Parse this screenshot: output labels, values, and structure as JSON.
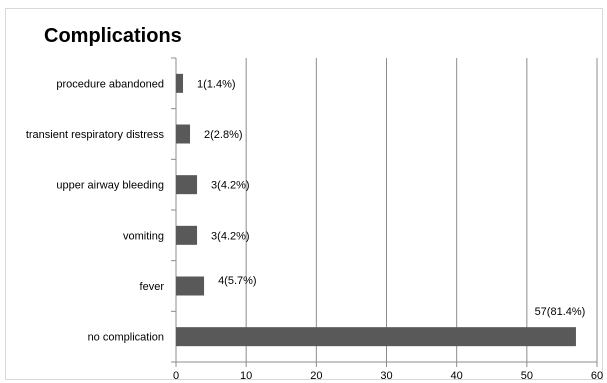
{
  "chart_data": {
    "type": "bar",
    "orientation": "horizontal",
    "title": "Complications",
    "categories": [
      "procedure abandoned",
      "transient respiratory distress",
      "upper airway bleeding",
      "vomiting",
      "fever",
      "no complication"
    ],
    "values": [
      1,
      2,
      3,
      3,
      4,
      57
    ],
    "data_labels": [
      "1(1.4%)",
      "2(2.8%)",
      "3(4.2%)",
      "3(4.2%)",
      "4(5.7%)",
      "57(81.4%)"
    ],
    "x_ticks": [
      "0",
      "10",
      "20",
      "30",
      "40",
      "50",
      "60"
    ],
    "xlim": [
      0,
      60
    ],
    "xlabel": "",
    "ylabel": "",
    "grid": "vertical",
    "legend": "none",
    "bar_color": "#595959",
    "grid_color": "#8c8c8c"
  }
}
